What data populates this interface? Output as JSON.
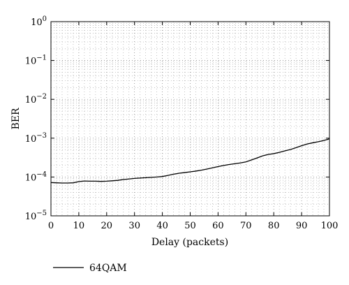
{
  "chart_data": {
    "type": "line",
    "title": "",
    "xlabel": "Delay (packets)",
    "ylabel": "BER",
    "xlim": [
      0,
      100
    ],
    "ylim": [
      1e-05,
      1
    ],
    "yscale": "log",
    "grid": true,
    "legend_position": "bottom-left",
    "x_ticks": [
      "0",
      "10",
      "20",
      "30",
      "40",
      "50",
      "60",
      "70",
      "80",
      "90",
      "100"
    ],
    "y_ticks": [
      {
        "base": "10",
        "exp": "0"
      },
      {
        "base": "10",
        "exp": "−1"
      },
      {
        "base": "10",
        "exp": "−2"
      },
      {
        "base": "10",
        "exp": "−3"
      },
      {
        "base": "10",
        "exp": "−4"
      },
      {
        "base": "10",
        "exp": "−5"
      }
    ],
    "series": [
      {
        "name": "64QAM",
        "color": "#000000",
        "x": [
          0,
          2,
          4,
          6,
          8,
          10,
          12,
          14,
          16,
          18,
          20,
          22,
          24,
          26,
          28,
          30,
          32,
          34,
          36,
          38,
          40,
          42,
          44,
          46,
          48,
          50,
          52,
          54,
          56,
          58,
          60,
          62,
          64,
          66,
          68,
          70,
          72,
          74,
          76,
          78,
          80,
          82,
          84,
          86,
          88,
          90,
          92,
          94,
          96,
          98,
          100
        ],
        "y": [
          7.2e-05,
          7.1e-05,
          7e-05,
          7e-05,
          7.1e-05,
          7.6e-05,
          7.9e-05,
          7.8e-05,
          7.8e-05,
          7.7e-05,
          7.8e-05,
          8e-05,
          8.2e-05,
          8.6e-05,
          8.9e-05,
          9.2e-05,
          9.4e-05,
          9.6e-05,
          9.8e-05,
          0.0001,
          0.000103,
          0.00011,
          0.000118,
          0.000125,
          0.00013,
          0.000136,
          0.000142,
          0.00015,
          0.00016,
          0.000172,
          0.000185,
          0.000198,
          0.00021,
          0.00022,
          0.00023,
          0.000245,
          0.000275,
          0.00031,
          0.00035,
          0.00038,
          0.0004,
          0.00043,
          0.00047,
          0.00051,
          0.00057,
          0.00064,
          0.00071,
          0.00076,
          0.00081,
          0.00087,
          0.00096
        ]
      }
    ]
  }
}
